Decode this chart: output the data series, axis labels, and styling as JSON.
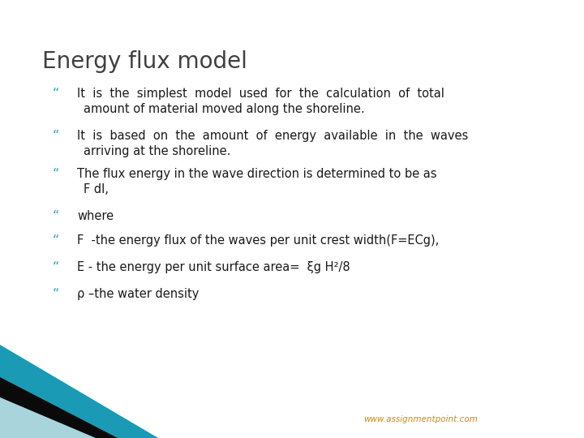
{
  "title": "Energy flux model",
  "title_color": "#404040",
  "title_fontsize": 20,
  "title_bold": false,
  "background_color": "#ffffff",
  "bullet_color": "#2a9db5",
  "text_color": "#1a1a1a",
  "bullet_char": "“",
  "bullet_lines": [
    [
      "It  is  the  simplest  model  used  for  the  calculation  of  total",
      "amount of material moved along the shoreline."
    ],
    [
      "It  is  based  on  the  amount  of  energy  available  in  the  waves",
      "arriving at the shoreline."
    ],
    [
      "The flux energy in the wave direction is determined to be as",
      "F dl,"
    ],
    [
      "where"
    ],
    [
      "F  -the energy flux of the waves per unit crest width(F=ECg),"
    ],
    [
      "E - the energy per unit surface area=  ξg H²/8"
    ],
    [
      "ρ –the water density"
    ]
  ],
  "text_fontsize": 10.5,
  "footer_text": "www.assignmentpoint.com",
  "footer_color": "#d4860a",
  "footer_fontsize": 7.5,
  "corner_teal": "#1a9ab5",
  "corner_light": "#aad4dc",
  "corner_black": "#0a0a0a",
  "fig_w": 7.2,
  "fig_h": 5.4,
  "dpi": 100
}
